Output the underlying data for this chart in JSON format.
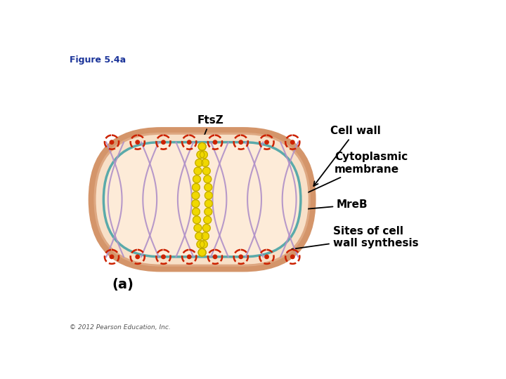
{
  "figure_title": "Figure 5.4a",
  "copyright": "© 2012 Pearson Education, Inc.",
  "panel_label": "(a)",
  "cell_outer_color": "#d4956a",
  "cell_wall_color": "#dea882",
  "cell_inner_light": "#f8e0c8",
  "cell_interior_color": "#fdebd8",
  "membrane_color": "#5aaaaa",
  "mreb_color": "#b090c8",
  "ftsz_color": "#f0d800",
  "ftsz_outline": "#c0a800",
  "red_dot_color": "#cc2200",
  "background_color": "#ffffff",
  "title_color": "#1a3399",
  "text_color": "#000000"
}
